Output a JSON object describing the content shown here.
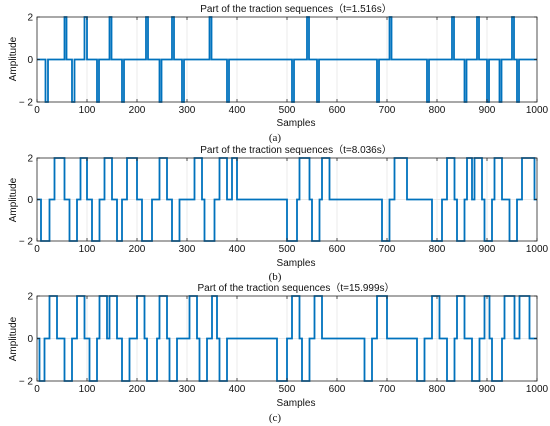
{
  "chart_data": [
    {
      "type": "line",
      "title": "Part of the traction sequences（t=1.516s）",
      "xlabel": "Samples",
      "ylabel": "Amplitude",
      "caption": "(a)",
      "xlim": [
        0,
        1000
      ],
      "ylim": [
        -2,
        2
      ],
      "xticks": [
        "0",
        "100",
        "200",
        "300",
        "400",
        "500",
        "600",
        "700",
        "800",
        "900",
        "1000"
      ],
      "yticks": [
        "-2",
        "0",
        "2"
      ],
      "grid": true,
      "line_color": "#0072BD",
      "transitions": [
        [
          0,
          0
        ],
        [
          17,
          -2
        ],
        [
          22,
          0
        ],
        [
          55,
          2
        ],
        [
          59,
          0
        ],
        [
          70,
          -2
        ],
        [
          75,
          0
        ],
        [
          95,
          2
        ],
        [
          100,
          0
        ],
        [
          120,
          -2
        ],
        [
          124,
          0
        ],
        [
          145,
          2
        ],
        [
          149,
          0
        ],
        [
          170,
          -2
        ],
        [
          174,
          0
        ],
        [
          218,
          2
        ],
        [
          222,
          0
        ],
        [
          245,
          -2
        ],
        [
          249,
          0
        ],
        [
          270,
          2
        ],
        [
          274,
          0
        ],
        [
          290,
          -2
        ],
        [
          294,
          0
        ],
        [
          345,
          2
        ],
        [
          349,
          0
        ],
        [
          380,
          -2
        ],
        [
          384,
          0
        ],
        [
          510,
          -2
        ],
        [
          514,
          0
        ],
        [
          540,
          2
        ],
        [
          544,
          0
        ],
        [
          560,
          -2
        ],
        [
          564,
          0
        ],
        [
          680,
          -2
        ],
        [
          684,
          0
        ],
        [
          705,
          2
        ],
        [
          709,
          0
        ],
        [
          780,
          -2
        ],
        [
          784,
          0
        ],
        [
          830,
          2
        ],
        [
          834,
          0
        ],
        [
          855,
          -2
        ],
        [
          859,
          0
        ],
        [
          880,
          2
        ],
        [
          884,
          0
        ],
        [
          900,
          -2
        ],
        [
          904,
          0
        ],
        [
          925,
          -2
        ],
        [
          929,
          0
        ],
        [
          950,
          2
        ],
        [
          954,
          0
        ],
        [
          960,
          -2
        ],
        [
          964,
          0
        ],
        [
          1000,
          0
        ]
      ]
    },
    {
      "type": "line",
      "title": "Part of the traction sequences（t=8.036s）",
      "xlabel": "Samples",
      "ylabel": "Amplitude",
      "caption": "(b)",
      "xlim": [
        0,
        1000
      ],
      "ylim": [
        -2,
        2
      ],
      "xticks": [
        "0",
        "100",
        "200",
        "300",
        "400",
        "500",
        "600",
        "700",
        "800",
        "900",
        "1000"
      ],
      "yticks": [
        "-2",
        "0",
        "2"
      ],
      "grid": true,
      "line_color": "#0072BD",
      "transitions": [
        [
          0,
          0
        ],
        [
          8,
          -2
        ],
        [
          25,
          0
        ],
        [
          35,
          2
        ],
        [
          55,
          0
        ],
        [
          65,
          -2
        ],
        [
          80,
          0
        ],
        [
          87,
          2
        ],
        [
          100,
          0
        ],
        [
          110,
          -2
        ],
        [
          125,
          0
        ],
        [
          135,
          2
        ],
        [
          150,
          0
        ],
        [
          160,
          -2
        ],
        [
          170,
          0
        ],
        [
          180,
          2
        ],
        [
          200,
          0
        ],
        [
          210,
          -2
        ],
        [
          230,
          0
        ],
        [
          245,
          2
        ],
        [
          260,
          0
        ],
        [
          270,
          -2
        ],
        [
          285,
          0
        ],
        [
          315,
          2
        ],
        [
          330,
          0
        ],
        [
          335,
          -2
        ],
        [
          355,
          0
        ],
        [
          365,
          2
        ],
        [
          380,
          0
        ],
        [
          390,
          2
        ],
        [
          400,
          0
        ],
        [
          500,
          -2
        ],
        [
          520,
          0
        ],
        [
          525,
          2
        ],
        [
          545,
          0
        ],
        [
          550,
          -2
        ],
        [
          565,
          0
        ],
        [
          570,
          2
        ],
        [
          585,
          0
        ],
        [
          690,
          -2
        ],
        [
          705,
          0
        ],
        [
          715,
          2
        ],
        [
          740,
          0
        ],
        [
          790,
          -2
        ],
        [
          810,
          0
        ],
        [
          820,
          2
        ],
        [
          835,
          0
        ],
        [
          840,
          -2
        ],
        [
          855,
          0
        ],
        [
          860,
          2
        ],
        [
          870,
          0
        ],
        [
          875,
          2
        ],
        [
          890,
          0
        ],
        [
          895,
          -2
        ],
        [
          910,
          0
        ],
        [
          915,
          2
        ],
        [
          930,
          0
        ],
        [
          945,
          -2
        ],
        [
          960,
          0
        ],
        [
          970,
          2
        ],
        [
          995,
          0
        ],
        [
          1000,
          0
        ]
      ]
    },
    {
      "type": "line",
      "title": "Part of the traction sequences（t=15.999s）",
      "xlabel": "Samples",
      "ylabel": "Amplitude",
      "caption": "(c)",
      "xlim": [
        0,
        1000
      ],
      "ylim": [
        -2,
        2
      ],
      "xticks": [
        "0",
        "100",
        "200",
        "300",
        "400",
        "500",
        "600",
        "700",
        "800",
        "900",
        "1000"
      ],
      "yticks": [
        "-2",
        "0",
        "2"
      ],
      "grid": true,
      "line_color": "#0072BD",
      "transitions": [
        [
          0,
          0
        ],
        [
          5,
          -2
        ],
        [
          15,
          0
        ],
        [
          25,
          2
        ],
        [
          40,
          0
        ],
        [
          55,
          -2
        ],
        [
          70,
          0
        ],
        [
          80,
          2
        ],
        [
          95,
          0
        ],
        [
          105,
          -2
        ],
        [
          120,
          0
        ],
        [
          125,
          2
        ],
        [
          140,
          0
        ],
        [
          145,
          2
        ],
        [
          160,
          0
        ],
        [
          170,
          -2
        ],
        [
          185,
          0
        ],
        [
          200,
          2
        ],
        [
          215,
          0
        ],
        [
          220,
          -2
        ],
        [
          240,
          0
        ],
        [
          245,
          2
        ],
        [
          260,
          0
        ],
        [
          265,
          -2
        ],
        [
          280,
          0
        ],
        [
          305,
          2
        ],
        [
          320,
          0
        ],
        [
          325,
          -2
        ],
        [
          340,
          0
        ],
        [
          350,
          2
        ],
        [
          360,
          0
        ],
        [
          365,
          -2
        ],
        [
          380,
          0
        ],
        [
          480,
          -2
        ],
        [
          500,
          0
        ],
        [
          510,
          2
        ],
        [
          525,
          0
        ],
        [
          530,
          -2
        ],
        [
          545,
          0
        ],
        [
          555,
          2
        ],
        [
          570,
          0
        ],
        [
          655,
          -2
        ],
        [
          670,
          0
        ],
        [
          680,
          2
        ],
        [
          700,
          0
        ],
        [
          760,
          -2
        ],
        [
          775,
          0
        ],
        [
          790,
          2
        ],
        [
          805,
          0
        ],
        [
          820,
          -2
        ],
        [
          835,
          0
        ],
        [
          840,
          2
        ],
        [
          855,
          0
        ],
        [
          870,
          -2
        ],
        [
          885,
          0
        ],
        [
          895,
          2
        ],
        [
          905,
          0
        ],
        [
          910,
          -2
        ],
        [
          930,
          0
        ],
        [
          935,
          2
        ],
        [
          955,
          0
        ],
        [
          965,
          2
        ],
        [
          985,
          0
        ],
        [
          1000,
          0
        ]
      ]
    }
  ]
}
